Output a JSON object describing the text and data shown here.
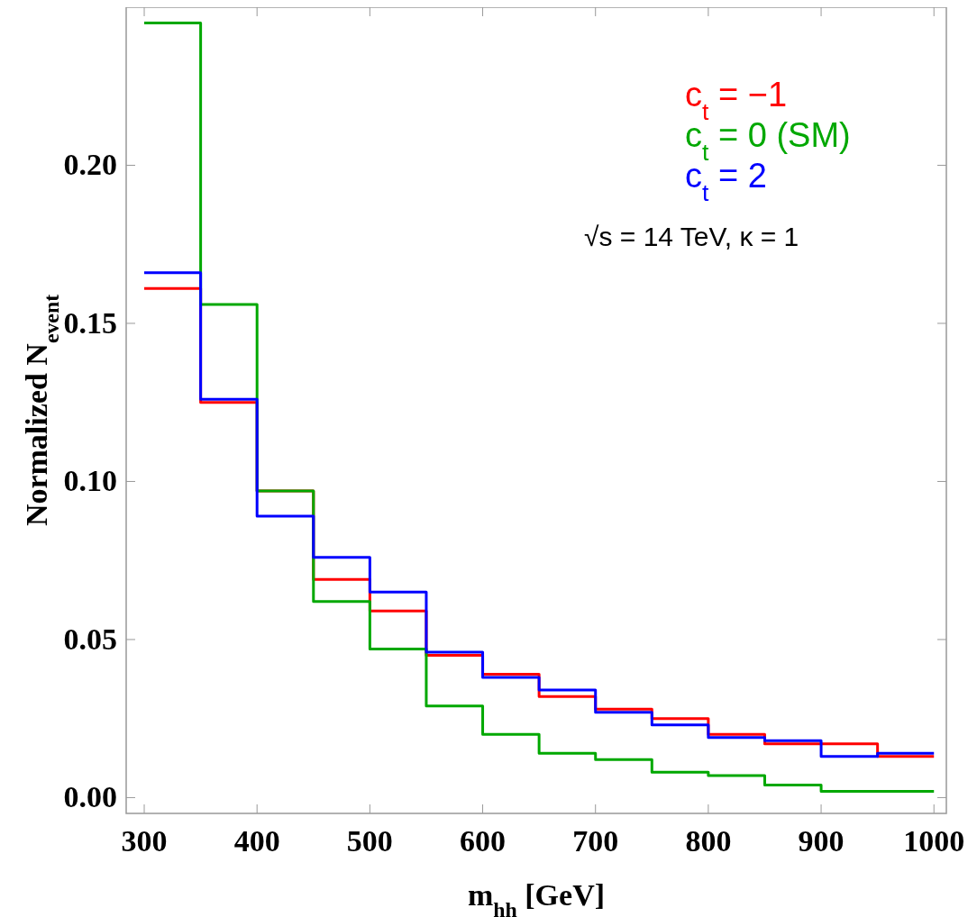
{
  "chart_data": {
    "type": "histogram",
    "xlabel": "m$_{hh}$ [GeV]",
    "ylabel": "Normalized N$_{event}$",
    "bins": [
      300,
      350,
      400,
      450,
      500,
      550,
      600,
      650,
      700,
      750,
      800,
      850,
      900,
      950,
      1000
    ],
    "series": [
      {
        "name": "c$_{t}$ = −1",
        "color": "#ff0000",
        "values": [
          0.161,
          0.125,
          0.097,
          0.069,
          0.059,
          0.045,
          0.039,
          0.032,
          0.028,
          0.025,
          0.02,
          0.017,
          0.017,
          0.013
        ]
      },
      {
        "name": "c$_{t}$ = 0 (SM)",
        "color": "#00a800",
        "values": [
          0.245,
          0.156,
          0.097,
          0.062,
          0.047,
          0.029,
          0.02,
          0.014,
          0.012,
          0.008,
          0.007,
          0.004,
          0.002,
          0.002
        ]
      },
      {
        "name": "c$_{t}$ = 2",
        "color": "#0000ff",
        "values": [
          0.166,
          0.126,
          0.089,
          0.076,
          0.065,
          0.046,
          0.038,
          0.034,
          0.027,
          0.023,
          0.019,
          0.018,
          0.013,
          0.014
        ]
      }
    ],
    "xlim": [
      284,
      1011
    ],
    "ylim": [
      -0.005,
      0.25
    ],
    "xticks": [
      300,
      400,
      500,
      600,
      700,
      800,
      900,
      1000
    ],
    "yticks": [
      {
        "value": 0,
        "label": "0.00"
      },
      {
        "value": 0.05,
        "label": "0.05"
      },
      {
        "value": 0.1,
        "label": "0.10"
      },
      {
        "value": 0.15,
        "label": "0.15"
      },
      {
        "value": 0.2,
        "label": "0.20"
      }
    ],
    "annotations": [
      "√s = 14 TeV, κ = 1"
    ],
    "legend": "top right",
    "grid": false
  }
}
